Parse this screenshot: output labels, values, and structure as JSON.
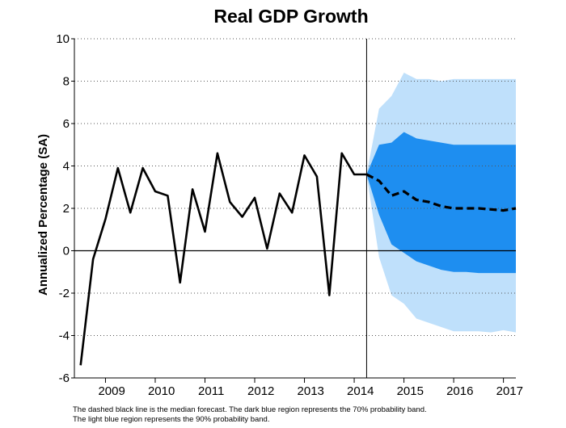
{
  "chart_data": {
    "type": "line",
    "title": "Real GDP Growth",
    "ylabel": "Annualized Percentage (SA)",
    "xlabel": "",
    "ylim": [
      -6,
      10
    ],
    "yticks": [
      "10",
      "8",
      "6",
      "4",
      "2",
      "0",
      "-2",
      "-4",
      "-6"
    ],
    "xlim": [
      2008.375,
      2017.25
    ],
    "xtick_labels": [
      {
        "label": "2009",
        "x": 2009.125
      },
      {
        "label": "2010",
        "x": 2010.125
      },
      {
        "label": "2011",
        "x": 2011.125
      },
      {
        "label": "2012",
        "x": 2012.125
      },
      {
        "label": "2013",
        "x": 2013.125
      },
      {
        "label": "2014",
        "x": 2014.125
      },
      {
        "label": "2015",
        "x": 2015.125
      },
      {
        "label": "2016",
        "x": 2016.125
      },
      {
        "label": "2017",
        "x": 2017.125
      }
    ],
    "forecast_start": 2014.25,
    "grid": true,
    "colors": {
      "actual": "#000000",
      "median": "#000000",
      "band70": "#1e8ef0",
      "band90": "#bfe0fb",
      "grid": "#555555"
    },
    "series": [
      {
        "kind": "actual",
        "x": [
          2008.5,
          2008.75,
          2009.0,
          2009.25,
          2009.5,
          2009.75,
          2010.0,
          2010.25,
          2010.5,
          2010.75,
          2011.0,
          2011.25,
          2011.5,
          2011.75,
          2012.0,
          2012.25,
          2012.5,
          2012.75,
          2013.0,
          2013.25,
          2013.5,
          2013.75,
          2014.0,
          2014.25
        ],
        "values": [
          -5.4,
          -0.4,
          1.5,
          3.9,
          1.8,
          3.9,
          2.8,
          2.6,
          -1.5,
          2.9,
          0.9,
          4.6,
          2.3,
          1.6,
          2.5,
          0.1,
          2.7,
          1.8,
          4.5,
          3.5,
          -2.1,
          4.6,
          3.6,
          3.6
        ]
      },
      {
        "kind": "median",
        "x": [
          2014.25,
          2014.5,
          2014.75,
          2015.0,
          2015.25,
          2015.5,
          2015.75,
          2016.0,
          2016.25,
          2016.5,
          2016.75,
          2017.0,
          2017.25
        ],
        "values": [
          3.6,
          3.3,
          2.6,
          2.8,
          2.4,
          2.3,
          2.1,
          2.0,
          2.0,
          2.0,
          1.95,
          1.9,
          2.0
        ]
      }
    ],
    "bands": {
      "x": [
        2014.25,
        2014.5,
        2014.75,
        2015.0,
        2015.25,
        2015.5,
        2015.75,
        2016.0,
        2016.25,
        2016.5,
        2016.75,
        2017.0,
        2017.25
      ],
      "band70_upper": [
        3.6,
        5.0,
        5.1,
        5.6,
        5.3,
        5.2,
        5.1,
        5.0,
        5.0,
        5.0,
        5.0,
        5.0,
        5.0
      ],
      "band70_lower": [
        3.6,
        1.7,
        0.3,
        -0.1,
        -0.5,
        -0.7,
        -0.9,
        -1.0,
        -1.0,
        -1.05,
        -1.05,
        -1.05,
        -1.05
      ],
      "band90_upper": [
        3.6,
        6.7,
        7.3,
        8.4,
        8.1,
        8.1,
        8.0,
        8.1,
        8.1,
        8.1,
        8.1,
        8.1,
        8.1
      ],
      "band90_lower": [
        3.6,
        -0.3,
        -2.1,
        -2.5,
        -3.2,
        -3.4,
        -3.6,
        -3.8,
        -3.8,
        -3.8,
        -3.85,
        -3.75,
        -3.85
      ]
    }
  },
  "notes": {
    "line1": "The dashed black line is the median forecast. The dark blue region represents the 70% probability band.",
    "line2": "The light blue region represents the 90% probability band."
  }
}
